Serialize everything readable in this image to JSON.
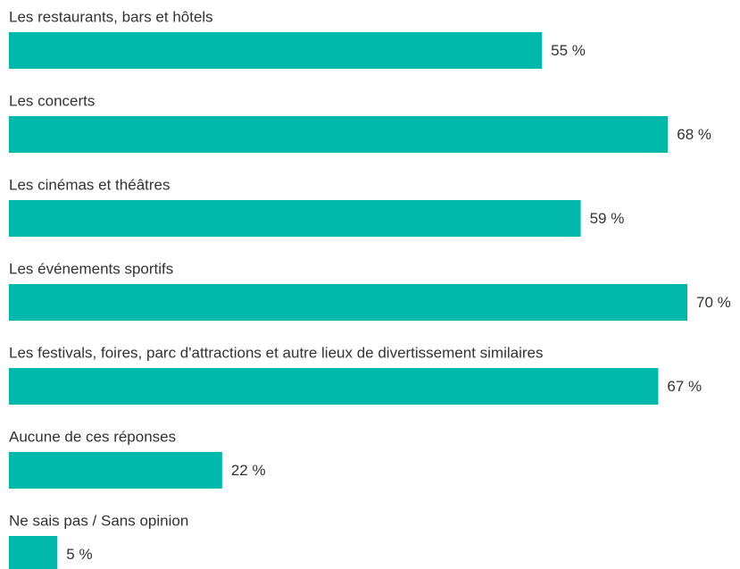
{
  "chart_data": {
    "type": "bar",
    "orientation": "horizontal",
    "color": "#00b9ab",
    "categories": [
      "Les restaurants, bars et hôtels",
      "Les concerts",
      "Les cinémas et théâtres",
      "Les événements sportifs",
      "Les festivals, foires, parc d'attractions et autre lieux de divertissement similaires",
      "Aucune de ces réponses",
      "Ne sais pas / Sans opinion"
    ],
    "values": [
      55,
      68,
      59,
      70,
      67,
      22,
      5
    ],
    "value_labels": [
      "55 %",
      "68 %",
      "59 %",
      "70 %",
      "67 %",
      "22 %",
      "5 %"
    ]
  }
}
